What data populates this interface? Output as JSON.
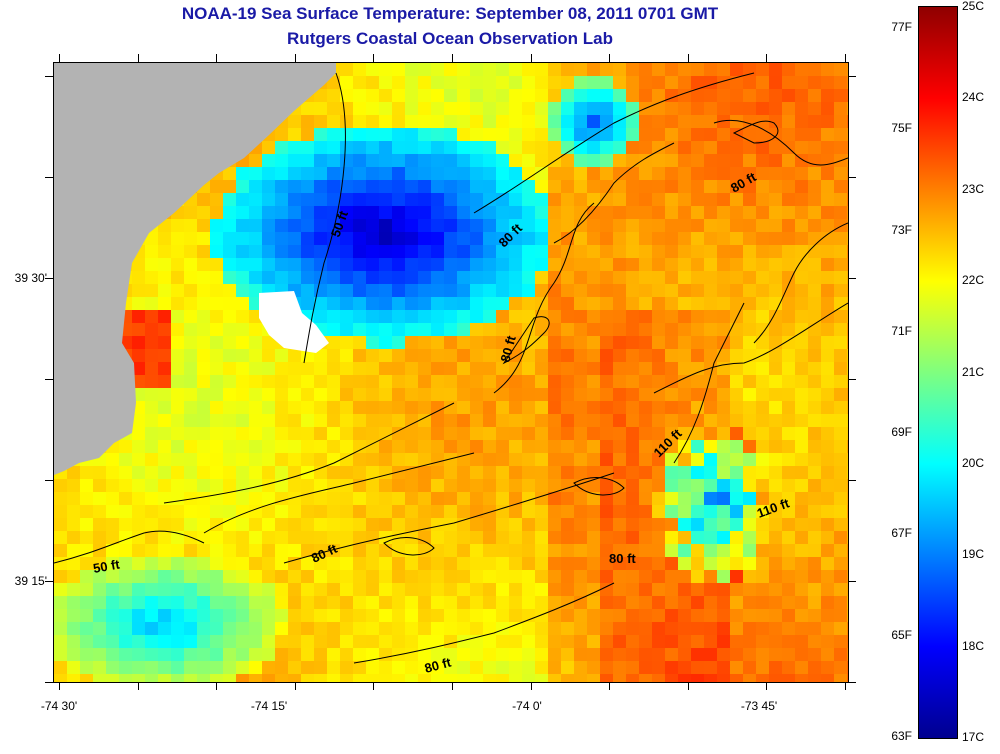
{
  "title": "NOAA-19 Sea Surface Temperature:  September 08, 2011 0701 GMT",
  "subtitle": "Rutgers Coastal Ocean Observation Lab",
  "x_labels": [
    "-74 30'",
    "-74 15'",
    "-74 0'",
    "-73 45'"
  ],
  "y_labels": [
    "39 30'",
    "39 15'"
  ],
  "contour_labels": [
    "80 ft",
    "50 ft",
    "80 ft",
    "80 ft",
    "80 ft",
    "110 ft",
    "110 ft",
    "50 ft",
    "80 ft",
    "80 ft"
  ],
  "colorbar": {
    "fahrenheit": [
      "77F",
      "75F",
      "73F",
      "71F",
      "69F",
      "67F",
      "65F",
      "63F"
    ],
    "celsius": [
      "25C",
      "24C",
      "23C",
      "22C",
      "21C",
      "20C",
      "19C",
      "18C",
      "17C"
    ]
  },
  "colors": {
    "land": "#b3b3b3",
    "title": "#1a1aa6",
    "cold": "#00008f",
    "warm": "#8f0000"
  }
}
